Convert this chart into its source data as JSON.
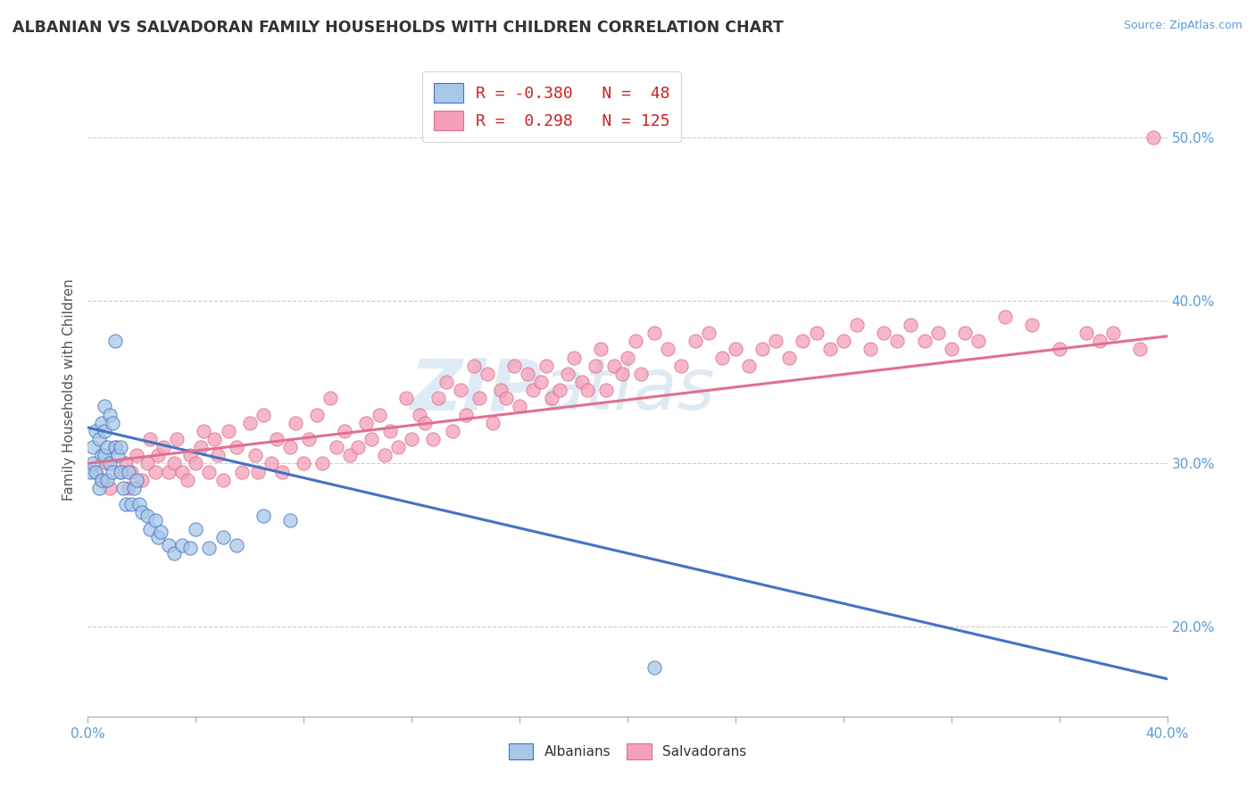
{
  "title": "ALBANIAN VS SALVADORAN FAMILY HOUSEHOLDS WITH CHILDREN CORRELATION CHART",
  "source": "Source: ZipAtlas.com",
  "ylabel": "Family Households with Children",
  "ylabel_tick_vals": [
    0.2,
    0.3,
    0.4,
    0.5
  ],
  "xlim": [
    0.0,
    0.4
  ],
  "ylim": [
    0.145,
    0.545
  ],
  "albanian_color": "#a8c8e8",
  "salvadoran_color": "#f4a0b8",
  "albanian_line_color": "#4472c4",
  "salvadoran_line_color": "#e07090",
  "albanian_R": -0.38,
  "albanian_N": 48,
  "salvadoran_R": 0.298,
  "salvadoran_N": 125,
  "background_color": "#ffffff",
  "grid_color": "#cccccc",
  "alb_trend_x0": 0.0,
  "alb_trend_y0": 0.322,
  "alb_trend_x1": 0.4,
  "alb_trend_y1": 0.168,
  "sal_trend_x0": 0.0,
  "sal_trend_y0": 0.3,
  "sal_trend_x1": 0.4,
  "sal_trend_y1": 0.378,
  "albanian_x": [
    0.001,
    0.002,
    0.002,
    0.003,
    0.003,
    0.004,
    0.004,
    0.005,
    0.005,
    0.005,
    0.006,
    0.006,
    0.006,
    0.007,
    0.007,
    0.008,
    0.008,
    0.009,
    0.009,
    0.01,
    0.01,
    0.011,
    0.012,
    0.012,
    0.013,
    0.014,
    0.015,
    0.016,
    0.017,
    0.018,
    0.019,
    0.02,
    0.022,
    0.023,
    0.025,
    0.026,
    0.027,
    0.03,
    0.032,
    0.035,
    0.038,
    0.04,
    0.045,
    0.05,
    0.055,
    0.065,
    0.075,
    0.21
  ],
  "albanian_y": [
    0.295,
    0.31,
    0.3,
    0.32,
    0.295,
    0.315,
    0.285,
    0.325,
    0.305,
    0.29,
    0.335,
    0.32,
    0.305,
    0.31,
    0.29,
    0.33,
    0.3,
    0.325,
    0.295,
    0.375,
    0.31,
    0.305,
    0.295,
    0.31,
    0.285,
    0.275,
    0.295,
    0.275,
    0.285,
    0.29,
    0.275,
    0.27,
    0.268,
    0.26,
    0.265,
    0.255,
    0.258,
    0.25,
    0.245,
    0.25,
    0.248,
    0.26,
    0.248,
    0.255,
    0.25,
    0.268,
    0.265,
    0.175
  ],
  "salvadoran_x": [
    0.003,
    0.005,
    0.007,
    0.008,
    0.01,
    0.012,
    0.014,
    0.015,
    0.016,
    0.018,
    0.02,
    0.022,
    0.023,
    0.025,
    0.026,
    0.028,
    0.03,
    0.032,
    0.033,
    0.035,
    0.037,
    0.038,
    0.04,
    0.042,
    0.043,
    0.045,
    0.047,
    0.048,
    0.05,
    0.052,
    0.055,
    0.057,
    0.06,
    0.062,
    0.063,
    0.065,
    0.068,
    0.07,
    0.072,
    0.075,
    0.077,
    0.08,
    0.082,
    0.085,
    0.087,
    0.09,
    0.092,
    0.095,
    0.097,
    0.1,
    0.103,
    0.105,
    0.108,
    0.11,
    0.112,
    0.115,
    0.118,
    0.12,
    0.123,
    0.125,
    0.128,
    0.13,
    0.133,
    0.135,
    0.138,
    0.14,
    0.143,
    0.145,
    0.148,
    0.15,
    0.153,
    0.155,
    0.158,
    0.16,
    0.163,
    0.165,
    0.168,
    0.17,
    0.172,
    0.175,
    0.178,
    0.18,
    0.183,
    0.185,
    0.188,
    0.19,
    0.192,
    0.195,
    0.198,
    0.2,
    0.203,
    0.205,
    0.21,
    0.215,
    0.22,
    0.225,
    0.23,
    0.235,
    0.24,
    0.245,
    0.25,
    0.255,
    0.26,
    0.265,
    0.27,
    0.275,
    0.28,
    0.285,
    0.29,
    0.295,
    0.3,
    0.305,
    0.31,
    0.315,
    0.32,
    0.325,
    0.33,
    0.34,
    0.35,
    0.36,
    0.37,
    0.375,
    0.38,
    0.39,
    0.395
  ],
  "salvadoran_y": [
    0.295,
    0.29,
    0.3,
    0.285,
    0.31,
    0.295,
    0.3,
    0.285,
    0.295,
    0.305,
    0.29,
    0.3,
    0.315,
    0.295,
    0.305,
    0.31,
    0.295,
    0.3,
    0.315,
    0.295,
    0.29,
    0.305,
    0.3,
    0.31,
    0.32,
    0.295,
    0.315,
    0.305,
    0.29,
    0.32,
    0.31,
    0.295,
    0.325,
    0.305,
    0.295,
    0.33,
    0.3,
    0.315,
    0.295,
    0.31,
    0.325,
    0.3,
    0.315,
    0.33,
    0.3,
    0.34,
    0.31,
    0.32,
    0.305,
    0.31,
    0.325,
    0.315,
    0.33,
    0.305,
    0.32,
    0.31,
    0.34,
    0.315,
    0.33,
    0.325,
    0.315,
    0.34,
    0.35,
    0.32,
    0.345,
    0.33,
    0.36,
    0.34,
    0.355,
    0.325,
    0.345,
    0.34,
    0.36,
    0.335,
    0.355,
    0.345,
    0.35,
    0.36,
    0.34,
    0.345,
    0.355,
    0.365,
    0.35,
    0.345,
    0.36,
    0.37,
    0.345,
    0.36,
    0.355,
    0.365,
    0.375,
    0.355,
    0.38,
    0.37,
    0.36,
    0.375,
    0.38,
    0.365,
    0.37,
    0.36,
    0.37,
    0.375,
    0.365,
    0.375,
    0.38,
    0.37,
    0.375,
    0.385,
    0.37,
    0.38,
    0.375,
    0.385,
    0.375,
    0.38,
    0.37,
    0.38,
    0.375,
    0.39,
    0.385,
    0.37,
    0.38,
    0.375,
    0.38,
    0.37,
    0.5
  ]
}
